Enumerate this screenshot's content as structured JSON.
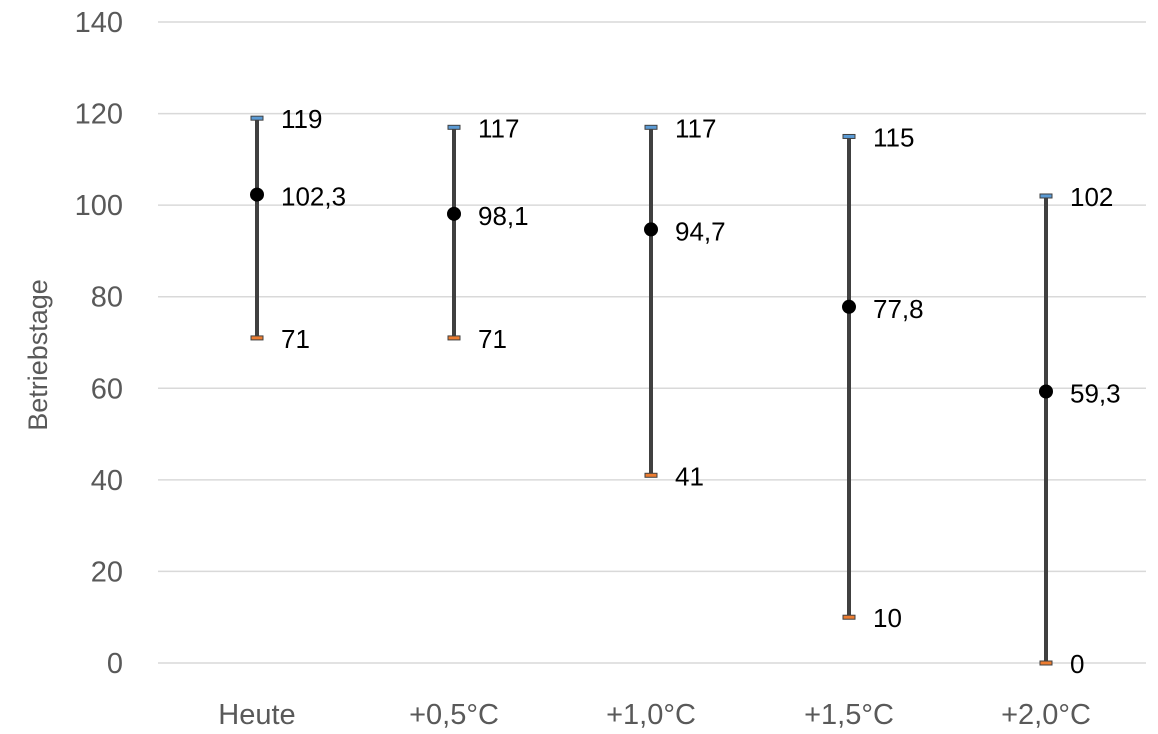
{
  "chart_data": {
    "type": "scatter",
    "title": "",
    "xlabel": "",
    "ylabel": "Betriebstage",
    "ylim": [
      0,
      140
    ],
    "yticks": [
      0,
      20,
      40,
      60,
      80,
      100,
      120,
      140
    ],
    "grid": true,
    "categories": [
      "Heute",
      "+0,5°C",
      "+1,0°C",
      "+1,5°C",
      "+2,0°C"
    ],
    "series": [
      {
        "values": [
          119,
          117,
          117,
          115,
          102
        ],
        "color": "#5b9bd5"
      },
      {
        "values": [
          102.3,
          98.1,
          94.7,
          77.8,
          59.3
        ],
        "color": "#000000"
      },
      {
        "values": [
          71,
          71,
          41,
          10,
          0
        ],
        "color": "#ed7d31"
      }
    ],
    "data_labels": {
      "max": [
        "119",
        "117",
        "117",
        "115",
        "102"
      ],
      "mean": [
        "102,3",
        "98,1",
        "94,7",
        "77,8",
        "59,3"
      ],
      "min": [
        "71",
        "71",
        "41",
        "10",
        "0"
      ]
    },
    "line_color": "#404040",
    "grid_color": "#d9d9d9"
  }
}
